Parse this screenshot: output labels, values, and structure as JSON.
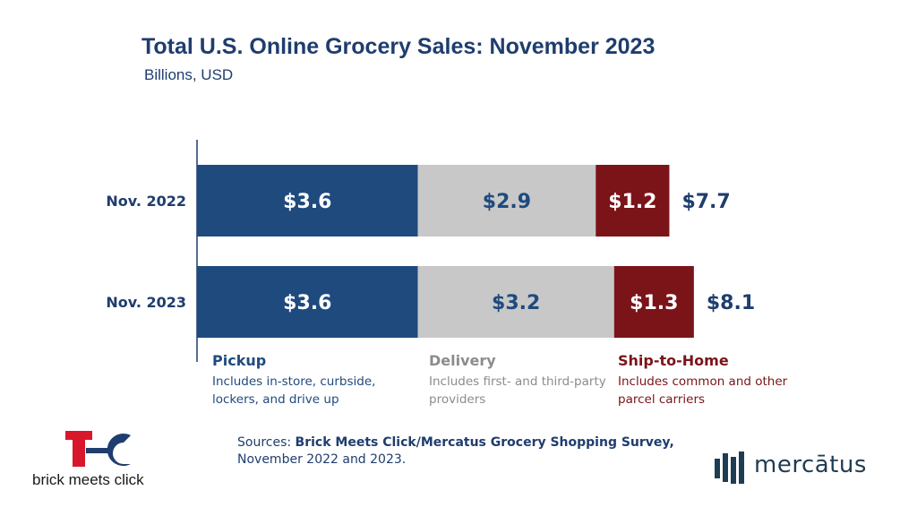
{
  "header": {
    "title": "Total U.S. Online Grocery Sales: November 2023",
    "subtitle": "Billions, USD"
  },
  "chart_data": {
    "type": "bar",
    "orientation": "horizontal",
    "stacked": true,
    "title": "Total U.S. Online Grocery Sales: November 2023",
    "subtitle": "Billions, USD",
    "categories": [
      "Nov. 2022",
      "Nov. 2023"
    ],
    "series": [
      {
        "name": "Pickup",
        "values": [
          3.6,
          3.6
        ],
        "labels": [
          "$3.6",
          "$3.6"
        ],
        "color": "#1f4a7e",
        "label_color": "#ffffff"
      },
      {
        "name": "Delivery",
        "values": [
          2.9,
          3.2
        ],
        "labels": [
          "$2.9",
          "$3.2"
        ],
        "color": "#c8c8c8",
        "label_color": "#1f4a7e"
      },
      {
        "name": "Ship-to-Home",
        "values": [
          1.2,
          1.3
        ],
        "labels": [
          "$1.2",
          "$1.3"
        ],
        "color": "#7b1419",
        "label_color": "#ffffff"
      }
    ],
    "totals": [
      7.7,
      8.1
    ],
    "total_labels": [
      "$7.7",
      "$8.1"
    ],
    "grid": false,
    "legend_position": "bottom"
  },
  "legend": [
    {
      "name": "Pickup",
      "desc": "Includes in-store, curbside, lockers, and drive up",
      "color": "#1f4a7e"
    },
    {
      "name": "Delivery",
      "desc": "Includes first- and third-party providers",
      "color": "#8c8c8c"
    },
    {
      "name": "Ship-to-Home",
      "desc": "Includes common and other parcel carriers",
      "color": "#7b1419"
    }
  ],
  "sources": {
    "prefix": "Sources: ",
    "bold": "Brick Meets Click/Mercatus Grocery Shopping Survey,",
    "line2": "November 2022 and 2023."
  },
  "logos": {
    "left_text": "brick meets click",
    "right_text": "mercātus"
  }
}
